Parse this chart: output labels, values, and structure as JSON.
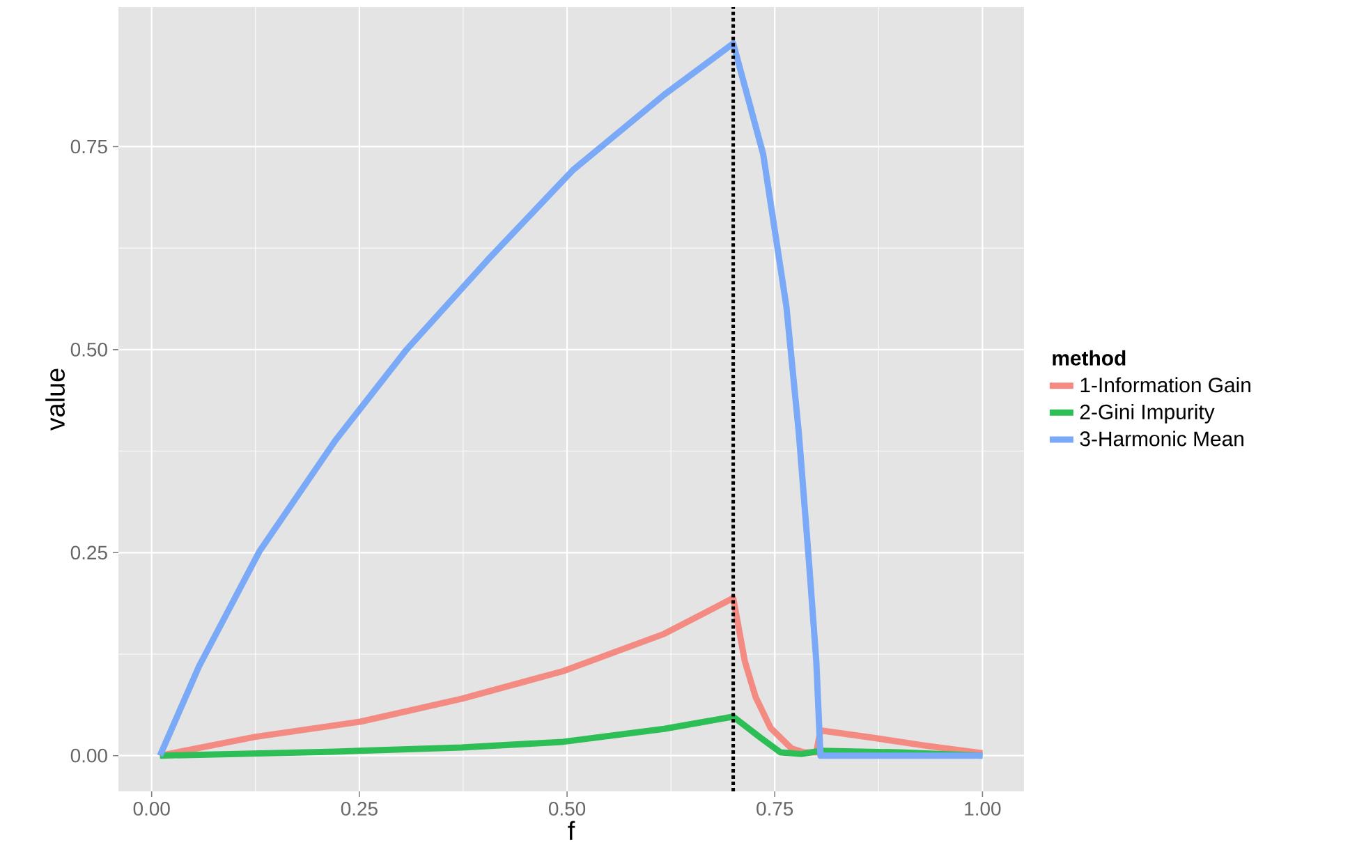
{
  "chart_data": {
    "type": "line",
    "xlabel": "f",
    "ylabel": "value",
    "legend_title": "method",
    "legend": "right",
    "grid": true,
    "xlim": [
      -0.04,
      1.05
    ],
    "ylim": [
      -0.044,
      0.922
    ],
    "xticks": [
      {
        "value": 0,
        "label": "0.00"
      },
      {
        "value": 0.25,
        "label": "0.25"
      },
      {
        "value": 0.5,
        "label": "0.50"
      },
      {
        "value": 0.75,
        "label": "0.75"
      },
      {
        "value": 1,
        "label": "1.00"
      }
    ],
    "yticks": [
      {
        "value": 0,
        "label": "0.00"
      },
      {
        "value": 0.25,
        "label": "0.25"
      },
      {
        "value": 0.5,
        "label": "0.50"
      },
      {
        "value": 0.75,
        "label": "0.75"
      }
    ],
    "ref_lines": [
      {
        "axis": "x",
        "value": 0.7,
        "color": "#000000",
        "line_style": "dotted"
      }
    ],
    "series": [
      {
        "name": "1-Information Gain",
        "color": "#f48b82",
        "x": [
          0.01,
          0.124,
          0.252,
          0.373,
          0.495,
          0.617,
          0.7,
          0.714,
          0.727,
          0.745,
          0.77,
          0.785,
          0.8,
          0.805,
          0.868,
          0.93,
          1.0
        ],
        "values": [
          0,
          0.023,
          0.042,
          0.07,
          0.104,
          0.15,
          0.194,
          0.116,
          0.072,
          0.034,
          0.009,
          0.004,
          0.004,
          0.031,
          0.022,
          0.0125,
          0.003
        ]
      },
      {
        "name": "2-Gini Impurity",
        "color": "#2dbe56",
        "x": [
          0.01,
          0.221,
          0.373,
          0.495,
          0.617,
          0.7,
          0.733,
          0.757,
          0.782,
          0.805,
          0.9,
          1.0
        ],
        "values": [
          0,
          0.005,
          0.01,
          0.017,
          0.033,
          0.048,
          0.022,
          0.004,
          0.002,
          0.006,
          0.004,
          0
        ]
      },
      {
        "name": "3-Harmonic Mean",
        "color": "#7aa9f7",
        "x": [
          0.01,
          0.057,
          0.13,
          0.221,
          0.306,
          0.404,
          0.507,
          0.617,
          0.7,
          0.736,
          0.764,
          0.779,
          0.791,
          0.8,
          0.805,
          1.0
        ],
        "values": [
          0,
          0.11,
          0.252,
          0.388,
          0.499,
          0.61,
          0.721,
          0.814,
          0.877,
          0.741,
          0.553,
          0.397,
          0.241,
          0.116,
          0,
          0
        ]
      }
    ]
  }
}
